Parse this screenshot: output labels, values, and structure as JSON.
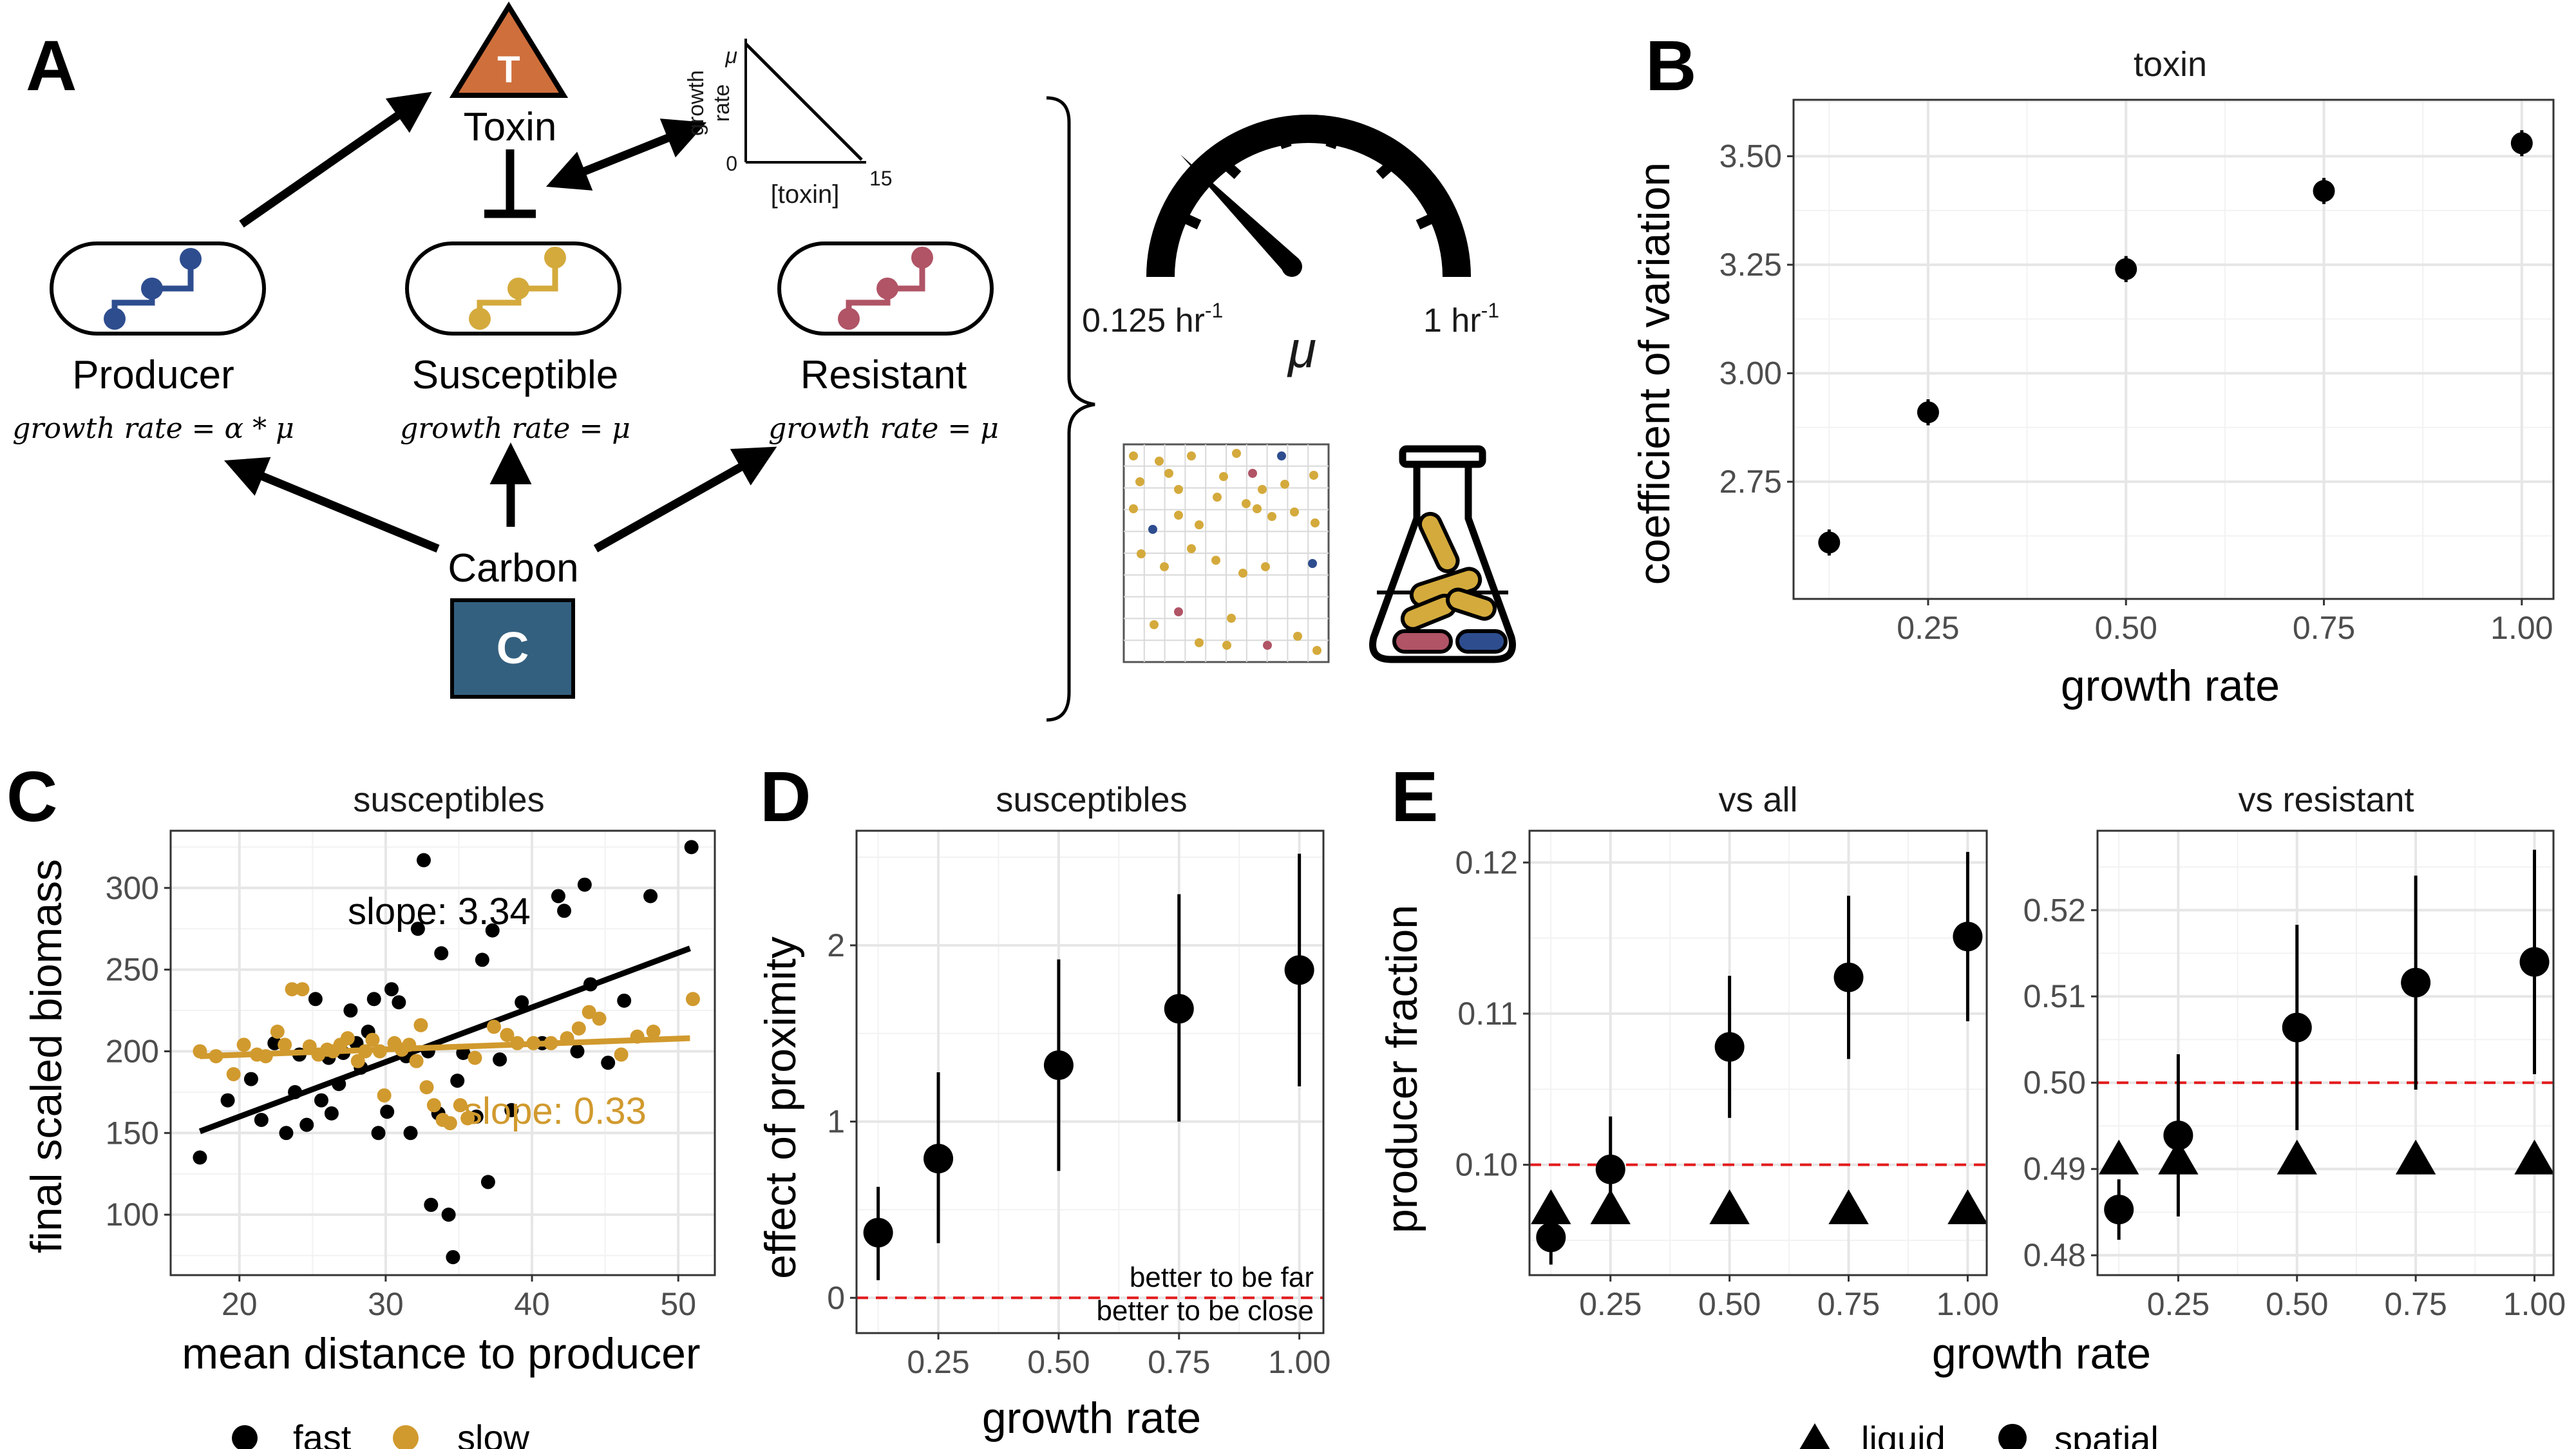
{
  "panel_letters": {
    "a": "A",
    "b": "B",
    "c": "C",
    "d": "D",
    "e": "E"
  },
  "diagram": {
    "toxin_symbol": "T",
    "toxin_label": "Toxin",
    "carbon_symbol": "C",
    "carbon_label": "Carbon",
    "producer_label": "Producer",
    "susceptible_label": "Susceptible",
    "resistant_label": "Resistant",
    "producer_formula": "growth rate = α * μ",
    "susceptible_formula": "growth rate = μ",
    "resistant_formula": "growth rate = μ",
    "inset_ylabel_1": "growth",
    "inset_ylabel_2": "rate",
    "inset_ytop": "μ",
    "inset_yzero": "0",
    "inset_xlabel": "[toxin]",
    "inset_xmax": "15",
    "gauge_min": "0.125 hr",
    "gauge_max": "1 hr",
    "gauge_unit_sup": "-1",
    "gauge_symbol": "μ",
    "colors": {
      "toxin": "#cf6f3c",
      "carbon": "#34607f",
      "producer": "#2e4d8f",
      "susceptible": "#d4aa3c",
      "resistant": "#b05466"
    }
  },
  "chart_data": [
    {
      "id": "B",
      "type": "scatter",
      "title": "toxin",
      "xlabel": "growth rate",
      "ylabel": "coefficient of variation",
      "xlim": [
        0.08,
        1.04
      ],
      "ylim": [
        2.48,
        3.63
      ],
      "xticks": [
        0.25,
        0.5,
        0.75,
        1.0
      ],
      "xtick_labels": [
        "0.25",
        "0.50",
        "0.75",
        "1.00"
      ],
      "yticks": [
        2.75,
        3.0,
        3.25,
        3.5
      ],
      "ytick_labels": [
        "2.75",
        "3.00",
        "3.25",
        "3.50"
      ],
      "grid": true,
      "points": [
        {
          "x": 0.125,
          "y": 2.61,
          "lo": 2.58,
          "hi": 2.64
        },
        {
          "x": 0.25,
          "y": 2.91,
          "lo": 2.88,
          "hi": 2.94
        },
        {
          "x": 0.5,
          "y": 3.24,
          "lo": 3.21,
          "hi": 3.27
        },
        {
          "x": 0.75,
          "y": 3.42,
          "lo": 3.39,
          "hi": 3.45
        },
        {
          "x": 1.0,
          "y": 3.53,
          "lo": 3.5,
          "hi": 3.56
        }
      ]
    },
    {
      "id": "C",
      "type": "scatter",
      "title": "susceptibles",
      "xlabel": "mean distance to producer",
      "ylabel": "final scaled biomass",
      "xlim": [
        15.3,
        52.5
      ],
      "ylim": [
        63,
        335
      ],
      "xticks": [
        20,
        30,
        40,
        50
      ],
      "xtick_labels": [
        "20",
        "30",
        "40",
        "50"
      ],
      "yticks": [
        100,
        150,
        200,
        250,
        300
      ],
      "ytick_labels": [
        "100",
        "150",
        "200",
        "250",
        "300"
      ],
      "grid": true,
      "legend_position": "bottom",
      "series": [
        {
          "name": "fast",
          "color": "#000000",
          "slope_label": "slope: 3.34",
          "fit": [
            [
              17.3,
              151
            ],
            [
              50.8,
              263
            ]
          ],
          "points": [
            [
              17.3,
              135
            ],
            [
              19.2,
              170
            ],
            [
              20.8,
              183
            ],
            [
              21.5,
              158
            ],
            [
              22.4,
              205
            ],
            [
              23.2,
              150
            ],
            [
              23.8,
              175
            ],
            [
              24.1,
              198
            ],
            [
              24.6,
              155
            ],
            [
              25.2,
              232
            ],
            [
              25.6,
              170
            ],
            [
              26.1,
              196
            ],
            [
              26.3,
              162
            ],
            [
              26.8,
              180
            ],
            [
              27.1,
              199
            ],
            [
              27.6,
              225
            ],
            [
              28.0,
              205
            ],
            [
              28.3,
              190
            ],
            [
              28.8,
              212
            ],
            [
              29.2,
              232
            ],
            [
              29.5,
              150
            ],
            [
              30.1,
              163
            ],
            [
              30.4,
              238
            ],
            [
              30.9,
              230
            ],
            [
              31.4,
              197
            ],
            [
              31.7,
              150
            ],
            [
              32.2,
              275
            ],
            [
              32.6,
              317
            ],
            [
              32.9,
              200
            ],
            [
              33.1,
              106
            ],
            [
              33.6,
              162
            ],
            [
              33.8,
              260
            ],
            [
              34.3,
              100
            ],
            [
              34.6,
              74
            ],
            [
              34.9,
              182
            ],
            [
              35.3,
              199
            ],
            [
              36.2,
              160
            ],
            [
              36.6,
              256
            ],
            [
              37.0,
              120
            ],
            [
              37.3,
              274
            ],
            [
              37.8,
              195
            ],
            [
              38.6,
              164
            ],
            [
              39.3,
              230
            ],
            [
              40.7,
              205
            ],
            [
              41.8,
              295
            ],
            [
              42.2,
              286
            ],
            [
              43.1,
              200
            ],
            [
              43.6,
              302
            ],
            [
              44.0,
              241
            ],
            [
              45.2,
              193
            ],
            [
              46.3,
              231
            ],
            [
              48.1,
              295
            ],
            [
              50.9,
              325
            ]
          ]
        },
        {
          "name": "slow",
          "color": "#d19a2e",
          "slope_label": "slope: 0.33",
          "fit": [
            [
              17.3,
              197
            ],
            [
              50.8,
              208
            ]
          ],
          "points": [
            [
              17.3,
              200
            ],
            [
              18.4,
              197
            ],
            [
              19.6,
              186
            ],
            [
              20.3,
              204
            ],
            [
              21.2,
              198
            ],
            [
              21.8,
              197
            ],
            [
              22.6,
              212
            ],
            [
              23.1,
              204
            ],
            [
              23.6,
              238
            ],
            [
              24.3,
              238
            ],
            [
              24.8,
              203
            ],
            [
              25.4,
              198
            ],
            [
              26.0,
              201
            ],
            [
              26.4,
              200
            ],
            [
              26.9,
              204
            ],
            [
              27.4,
              208
            ],
            [
              28.1,
              194
            ],
            [
              28.6,
              200
            ],
            [
              29.1,
              207
            ],
            [
              29.6,
              200
            ],
            [
              29.9,
              173
            ],
            [
              30.6,
              205
            ],
            [
              31.1,
              201
            ],
            [
              31.6,
              204
            ],
            [
              32.1,
              194
            ],
            [
              32.4,
              216
            ],
            [
              32.8,
              178
            ],
            [
              33.3,
              167
            ],
            [
              33.9,
              158
            ],
            [
              34.4,
              156
            ],
            [
              35.1,
              167
            ],
            [
              35.6,
              159
            ],
            [
              36.1,
              196
            ],
            [
              37.4,
              215
            ],
            [
              38.3,
              210
            ],
            [
              39.0,
              205
            ],
            [
              40.1,
              205
            ],
            [
              41.3,
              205
            ],
            [
              42.4,
              208
            ],
            [
              43.2,
              214
            ],
            [
              43.9,
              224
            ],
            [
              44.6,
              220
            ],
            [
              46.1,
              198
            ],
            [
              47.2,
              209
            ],
            [
              48.3,
              212
            ],
            [
              51.0,
              232
            ]
          ]
        }
      ]
    },
    {
      "id": "D",
      "type": "scatter",
      "title": "susceptibles",
      "xlabel": "growth rate",
      "ylabel": "effect of proximity",
      "xlim": [
        0.08,
        1.05
      ],
      "ylim": [
        -0.2,
        2.65
      ],
      "xticks": [
        0.25,
        0.5,
        0.75,
        1.0
      ],
      "xtick_labels": [
        "0.25",
        "0.50",
        "0.75",
        "1.00"
      ],
      "yticks": [
        0,
        1,
        2
      ],
      "ytick_labels": [
        "0",
        "1",
        "2"
      ],
      "grid": true,
      "reference_line": {
        "y": 0,
        "label_above": "better to be far",
        "label_below": "better to be close"
      },
      "points": [
        {
          "x": 0.125,
          "y": 0.37,
          "lo": 0.1,
          "hi": 0.63
        },
        {
          "x": 0.25,
          "y": 0.79,
          "lo": 0.31,
          "hi": 1.28
        },
        {
          "x": 0.5,
          "y": 1.32,
          "lo": 0.72,
          "hi": 1.92
        },
        {
          "x": 0.75,
          "y": 1.64,
          "lo": 1.0,
          "hi": 2.29
        },
        {
          "x": 1.0,
          "y": 1.86,
          "lo": 1.2,
          "hi": 2.52
        }
      ]
    },
    {
      "id": "E1",
      "type": "scatter",
      "title": "vs all",
      "xlabel": "growth rate",
      "ylabel": "producer fraction",
      "xlim": [
        0.08,
        1.04
      ],
      "ylim": [
        0.0927,
        0.1221
      ],
      "xticks": [
        0.25,
        0.5,
        0.75,
        1.0
      ],
      "xtick_labels": [
        "0.25",
        "0.50",
        "0.75",
        "1.00"
      ],
      "yticks": [
        0.1,
        0.11,
        0.12
      ],
      "ytick_labels": [
        "0.10",
        "0.11",
        "0.12"
      ],
      "grid": true,
      "reference_line": {
        "y": 0.1
      },
      "series": [
        {
          "name": "liquid",
          "marker": "triangle",
          "points": [
            {
              "x": 0.125,
              "y": 0.097
            },
            {
              "x": 0.25,
              "y": 0.097
            },
            {
              "x": 0.5,
              "y": 0.097
            },
            {
              "x": 0.75,
              "y": 0.097
            },
            {
              "x": 1.0,
              "y": 0.097
            }
          ]
        },
        {
          "name": "spatial",
          "marker": "circle",
          "points": [
            {
              "x": 0.125,
              "y": 0.0952,
              "lo": 0.0934,
              "hi": 0.097
            },
            {
              "x": 0.25,
              "y": 0.0997,
              "lo": 0.0962,
              "hi": 0.1032
            },
            {
              "x": 0.5,
              "y": 0.1078,
              "lo": 0.1031,
              "hi": 0.1125
            },
            {
              "x": 0.75,
              "y": 0.1124,
              "lo": 0.107,
              "hi": 0.1178
            },
            {
              "x": 1.0,
              "y": 0.1151,
              "lo": 0.1095,
              "hi": 0.1207
            }
          ]
        }
      ]
    },
    {
      "id": "E2",
      "type": "scatter",
      "title": "vs resistant",
      "xlabel": "growth rate",
      "ylabel": "",
      "xlim": [
        0.08,
        1.04
      ],
      "ylim": [
        0.4777,
        0.5292
      ],
      "xticks": [
        0.25,
        0.5,
        0.75,
        1.0
      ],
      "xtick_labels": [
        "0.25",
        "0.50",
        "0.75",
        "1.00"
      ],
      "yticks": [
        0.48,
        0.49,
        0.5,
        0.51,
        0.52
      ],
      "ytick_labels": [
        "0.48",
        "0.49",
        "0.50",
        "0.51",
        "0.52"
      ],
      "grid": true,
      "reference_line": {
        "y": 0.5
      },
      "series": [
        {
          "name": "liquid",
          "marker": "triangle",
          "points": [
            {
              "x": 0.125,
              "y": 0.491
            },
            {
              "x": 0.25,
              "y": 0.491
            },
            {
              "x": 0.5,
              "y": 0.491
            },
            {
              "x": 0.75,
              "y": 0.491
            },
            {
              "x": 1.0,
              "y": 0.491
            }
          ]
        },
        {
          "name": "spatial",
          "marker": "circle",
          "points": [
            {
              "x": 0.125,
              "y": 0.4853,
              "lo": 0.4818,
              "hi": 0.4888
            },
            {
              "x": 0.25,
              "y": 0.4939,
              "lo": 0.4845,
              "hi": 0.5033
            },
            {
              "x": 0.5,
              "y": 0.5064,
              "lo": 0.4945,
              "hi": 0.5183
            },
            {
              "x": 0.75,
              "y": 0.5116,
              "lo": 0.4992,
              "hi": 0.524
            },
            {
              "x": 1.0,
              "y": 0.514,
              "lo": 0.501,
              "hi": 0.527
            }
          ]
        }
      ]
    }
  ],
  "legend_e": {
    "liquid": "liquid",
    "spatial": "spatial"
  }
}
